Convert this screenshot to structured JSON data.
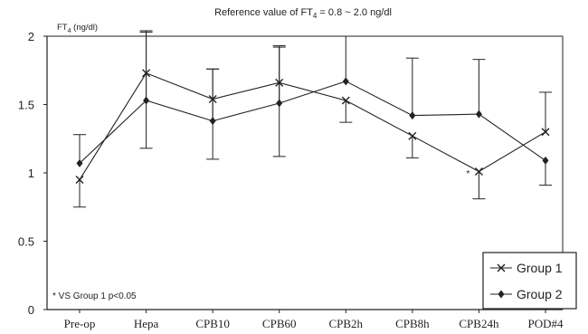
{
  "chart_data": {
    "type": "line",
    "title": "Reference value of FT4 = 0.8 ~ 2.0 ng/dl",
    "title_parts": {
      "a": "Reference value of FT",
      "sub": "4",
      "b": " = 0.8 ~ 2.0 ng/dl"
    },
    "ylabel": "FT4 (ng/dl)",
    "ylabel_parts": {
      "a": "FT",
      "sub": "4",
      "b": " (ng/dl)"
    },
    "xlabel": "",
    "ylim": [
      0,
      2
    ],
    "yticks": [
      "0",
      "0.5",
      "1",
      "1.5",
      "2"
    ],
    "categories": [
      "Pre-op",
      "Hepa",
      "CPB10",
      "CPB60",
      "CPB2h",
      "CPB8h",
      "CPB24h",
      "POD#4"
    ],
    "series": [
      {
        "name": "Group 1",
        "marker": "x",
        "values": [
          0.95,
          1.73,
          1.54,
          1.66,
          1.53,
          1.27,
          1.01,
          1.3
        ],
        "err_up": [
          0.0,
          0.31,
          0.22,
          0.26,
          0.0,
          0.0,
          0.0,
          0.29
        ],
        "err_down": [
          0.2,
          0.55,
          0.44,
          0.54,
          0.16,
          0.16,
          0.2,
          0.0
        ]
      },
      {
        "name": "Group 2",
        "marker": "diamond",
        "values": [
          1.07,
          1.53,
          1.38,
          1.51,
          1.67,
          1.42,
          1.43,
          1.09
        ],
        "err_up": [
          0.21,
          0.5,
          0.38,
          0.42,
          0.33,
          0.42,
          0.4,
          0.0
        ],
        "err_down": [
          0.0,
          0.0,
          0.0,
          0.0,
          0.0,
          0.0,
          0.0,
          0.18
        ]
      }
    ],
    "annotations": [
      "* VS Group 1 p<0.05"
    ],
    "significance_markers": [
      {
        "category": "CPB24h",
        "text": "*"
      }
    ],
    "legend": {
      "position": "bottom-right"
    },
    "grid": false
  }
}
